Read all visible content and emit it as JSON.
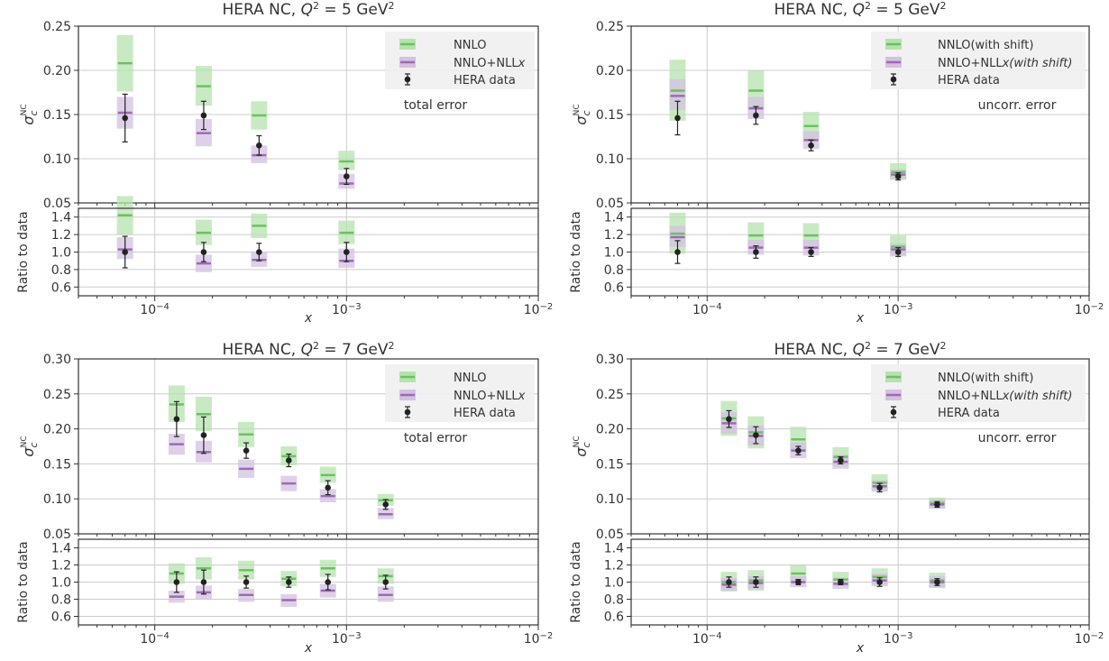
{
  "colors": {
    "nnlo": "#6cc063",
    "nnlo_band": "#b5e3ad",
    "nllx": "#9b6bb3",
    "nllx_band": "#d4c0e2",
    "data": "#222222",
    "grid": "#cccccc",
    "frame": "#333333",
    "legend_bg": "#efefef"
  },
  "chart_data": [
    {
      "type": "scatter",
      "title_parts": [
        "HERA NC, ",
        "Q",
        "2",
        " = 5 GeV",
        "2"
      ],
      "xlabel": "x",
      "ylabel_main": [
        "σ",
        "c",
        "NC"
      ],
      "ylabel_ratio": "Ratio to data",
      "xscale": "log",
      "xlim": [
        4e-05,
        0.01
      ],
      "xticks": [
        {
          "value": 0.0001,
          "label_base": "10",
          "label_exp": "−4"
        },
        {
          "value": 0.001,
          "label_base": "10",
          "label_exp": "−3"
        },
        {
          "value": 0.01,
          "label_base": "10",
          "label_exp": "−2"
        }
      ],
      "main_ylim": [
        0.05,
        0.25
      ],
      "main_yticks": [
        "0.05",
        "0.10",
        "0.15",
        "0.20",
        "0.25"
      ],
      "ratio_ylim": [
        0.5,
        1.5
      ],
      "ratio_yticks": [
        "0.6",
        "0.8",
        "1.0",
        "1.2",
        "1.4"
      ],
      "legend": [
        "NNLO",
        "NNLO+NLL",
        "x",
        "HERA data"
      ],
      "error_note": "total error",
      "points": [
        {
          "x": 7e-05,
          "data": 0.146,
          "err": 0.027,
          "nnlo": 0.208,
          "nnlo_band": [
            0.176,
            0.24
          ],
          "nllx": 0.152,
          "nllx_band": [
            0.134,
            0.17
          ]
        },
        {
          "x": 0.00018,
          "data": 0.149,
          "err": 0.016,
          "nnlo": 0.182,
          "nnlo_band": [
            0.16,
            0.205
          ],
          "nllx": 0.129,
          "nllx_band": [
            0.114,
            0.145
          ]
        },
        {
          "x": 0.00035,
          "data": 0.115,
          "err": 0.011,
          "nnlo": 0.149,
          "nnlo_band": [
            0.133,
            0.165
          ],
          "nllx": 0.104,
          "nllx_band": [
            0.095,
            0.115
          ]
        },
        {
          "x": 0.001,
          "data": 0.08,
          "err": 0.009,
          "nnlo": 0.097,
          "nnlo_band": [
            0.087,
            0.109
          ],
          "nllx": 0.072,
          "nllx_band": [
            0.066,
            0.083
          ]
        }
      ],
      "ratio_points": [
        {
          "x": 7e-05,
          "data": 1.0,
          "err": 0.18,
          "nnlo": 1.42,
          "nnlo_band": [
            1.2,
            1.64
          ],
          "nllx": 1.03,
          "nllx_band": [
            0.92,
            1.17
          ]
        },
        {
          "x": 0.00018,
          "data": 1.0,
          "err": 0.11,
          "nnlo": 1.22,
          "nnlo_band": [
            1.08,
            1.37
          ],
          "nllx": 0.87,
          "nllx_band": [
            0.77,
            0.97
          ]
        },
        {
          "x": 0.00035,
          "data": 1.0,
          "err": 0.1,
          "nnlo": 1.3,
          "nnlo_band": [
            1.16,
            1.44
          ],
          "nllx": 0.91,
          "nllx_band": [
            0.83,
            1.0
          ]
        },
        {
          "x": 0.001,
          "data": 1.0,
          "err": 0.11,
          "nnlo": 1.22,
          "nnlo_band": [
            1.09,
            1.36
          ],
          "nllx": 0.9,
          "nllx_band": [
            0.82,
            1.04
          ]
        }
      ]
    },
    {
      "type": "scatter",
      "title_parts": [
        "HERA NC, ",
        "Q",
        "2",
        " = 5 GeV",
        "2"
      ],
      "xlabel": "x",
      "ylabel_main": [
        "σ",
        "c",
        "NC"
      ],
      "ylabel_ratio": "Ratio to data",
      "xscale": "log",
      "xlim": [
        4e-05,
        0.01
      ],
      "xticks": [
        {
          "value": 0.0001,
          "label_base": "10",
          "label_exp": "−4"
        },
        {
          "value": 0.001,
          "label_base": "10",
          "label_exp": "−3"
        },
        {
          "value": 0.01,
          "label_base": "10",
          "label_exp": "−2"
        }
      ],
      "main_ylim": [
        0.05,
        0.25
      ],
      "main_yticks": [
        "0.05",
        "0.10",
        "0.15",
        "0.20",
        "0.25"
      ],
      "ratio_ylim": [
        0.5,
        1.5
      ],
      "ratio_yticks": [
        "0.6",
        "0.8",
        "1.0",
        "1.2",
        "1.4"
      ],
      "legend": [
        "NNLO(with shift)",
        "NNLO+NLL",
        "x(with shift)",
        "HERA data"
      ],
      "error_note": "uncorr. error",
      "points": [
        {
          "x": 7e-05,
          "data": 0.146,
          "err": 0.019,
          "nnlo": 0.177,
          "nnlo_band": [
            0.143,
            0.212
          ],
          "nllx": 0.171,
          "nllx_band": [
            0.155,
            0.19
          ]
        },
        {
          "x": 0.00018,
          "data": 0.149,
          "err": 0.01,
          "nnlo": 0.177,
          "nnlo_band": [
            0.155,
            0.2
          ],
          "nllx": 0.157,
          "nllx_band": [
            0.145,
            0.17
          ]
        },
        {
          "x": 0.00035,
          "data": 0.115,
          "err": 0.006,
          "nnlo": 0.137,
          "nnlo_band": [
            0.122,
            0.153
          ],
          "nllx": 0.121,
          "nllx_band": [
            0.111,
            0.131
          ]
        },
        {
          "x": 0.001,
          "data": 0.08,
          "err": 0.004,
          "nnlo": 0.085,
          "nnlo_band": [
            0.076,
            0.095
          ],
          "nllx": 0.082,
          "nllx_band": [
            0.077,
            0.088
          ]
        }
      ],
      "ratio_points": [
        {
          "x": 7e-05,
          "data": 1.0,
          "err": 0.13,
          "nnlo": 1.21,
          "nnlo_band": [
            0.98,
            1.45
          ],
          "nllx": 1.17,
          "nllx_band": [
            1.06,
            1.3
          ]
        },
        {
          "x": 0.00018,
          "data": 1.0,
          "err": 0.07,
          "nnlo": 1.19,
          "nnlo_band": [
            1.04,
            1.34
          ],
          "nllx": 1.05,
          "nllx_band": [
            0.97,
            1.14
          ]
        },
        {
          "x": 0.00035,
          "data": 1.0,
          "err": 0.05,
          "nnlo": 1.19,
          "nnlo_band": [
            1.06,
            1.33
          ],
          "nllx": 1.05,
          "nllx_band": [
            0.96,
            1.14
          ]
        },
        {
          "x": 0.001,
          "data": 1.0,
          "err": 0.05,
          "nnlo": 1.06,
          "nnlo_band": [
            0.95,
            1.19
          ],
          "nllx": 1.03,
          "nllx_band": [
            0.96,
            1.1
          ]
        }
      ]
    },
    {
      "type": "scatter",
      "title_parts": [
        "HERA NC, ",
        "Q",
        "2",
        " = 7 GeV",
        "2"
      ],
      "xlabel": "x",
      "ylabel_main": [
        "σ",
        "c",
        "NC"
      ],
      "ylabel_ratio": "Ratio to data",
      "xscale": "log",
      "xlim": [
        4e-05,
        0.01
      ],
      "xticks": [
        {
          "value": 0.0001,
          "label_base": "10",
          "label_exp": "−4"
        },
        {
          "value": 0.001,
          "label_base": "10",
          "label_exp": "−3"
        },
        {
          "value": 0.01,
          "label_base": "10",
          "label_exp": "−2"
        }
      ],
      "main_ylim": [
        0.05,
        0.3
      ],
      "main_yticks": [
        "0.05",
        "0.10",
        "0.15",
        "0.20",
        "0.25",
        "0.30"
      ],
      "ratio_ylim": [
        0.5,
        1.5
      ],
      "ratio_yticks": [
        "0.6",
        "0.8",
        "1.0",
        "1.2",
        "1.4"
      ],
      "legend": [
        "NNLO",
        "NNLO+NLL",
        "x",
        "HERA data"
      ],
      "error_note": "total error",
      "points": [
        {
          "x": 0.00013,
          "data": 0.214,
          "err": 0.025,
          "nnlo": 0.235,
          "nnlo_band": [
            0.21,
            0.262
          ],
          "nllx": 0.178,
          "nllx_band": [
            0.163,
            0.193
          ]
        },
        {
          "x": 0.00018,
          "data": 0.191,
          "err": 0.026,
          "nnlo": 0.221,
          "nnlo_band": [
            0.197,
            0.246
          ],
          "nllx": 0.167,
          "nllx_band": [
            0.152,
            0.183
          ]
        },
        {
          "x": 0.0003,
          "data": 0.169,
          "err": 0.011,
          "nnlo": 0.192,
          "nnlo_band": [
            0.174,
            0.21
          ],
          "nllx": 0.143,
          "nllx_band": [
            0.13,
            0.156
          ]
        },
        {
          "x": 0.0005,
          "data": 0.155,
          "err": 0.009,
          "nnlo": 0.161,
          "nnlo_band": [
            0.148,
            0.175
          ],
          "nllx": 0.122,
          "nllx_band": [
            0.111,
            0.133
          ]
        },
        {
          "x": 0.0008,
          "data": 0.116,
          "err": 0.01,
          "nnlo": 0.134,
          "nnlo_band": [
            0.123,
            0.146
          ],
          "nllx": 0.104,
          "nllx_band": [
            0.095,
            0.114
          ]
        },
        {
          "x": 0.0016,
          "data": 0.092,
          "err": 0.007,
          "nnlo": 0.098,
          "nnlo_band": [
            0.09,
            0.107
          ],
          "nllx": 0.078,
          "nllx_band": [
            0.071,
            0.087
          ]
        }
      ],
      "ratio_points": [
        {
          "x": 0.00013,
          "data": 1.0,
          "err": 0.12,
          "nnlo": 1.1,
          "nnlo_band": [
            0.98,
            1.22
          ],
          "nllx": 0.83,
          "nllx_band": [
            0.76,
            0.9
          ]
        },
        {
          "x": 0.00018,
          "data": 1.0,
          "err": 0.14,
          "nnlo": 1.16,
          "nnlo_band": [
            1.03,
            1.29
          ],
          "nllx": 0.88,
          "nllx_band": [
            0.8,
            0.96
          ]
        },
        {
          "x": 0.0003,
          "data": 1.0,
          "err": 0.07,
          "nnlo": 1.14,
          "nnlo_band": [
            1.03,
            1.25
          ],
          "nllx": 0.85,
          "nllx_band": [
            0.77,
            0.92
          ]
        },
        {
          "x": 0.0005,
          "data": 1.0,
          "err": 0.06,
          "nnlo": 1.04,
          "nnlo_band": [
            0.95,
            1.13
          ],
          "nllx": 0.79,
          "nllx_band": [
            0.71,
            0.86
          ]
        },
        {
          "x": 0.0008,
          "data": 1.0,
          "err": 0.09,
          "nnlo": 1.16,
          "nnlo_band": [
            1.06,
            1.26
          ],
          "nllx": 0.9,
          "nllx_band": [
            0.82,
            0.98
          ]
        },
        {
          "x": 0.0016,
          "data": 1.0,
          "err": 0.08,
          "nnlo": 1.07,
          "nnlo_band": [
            0.98,
            1.16
          ],
          "nllx": 0.85,
          "nllx_band": [
            0.77,
            0.95
          ]
        }
      ]
    },
    {
      "type": "scatter",
      "title_parts": [
        "HERA NC, ",
        "Q",
        "2",
        " = 7 GeV",
        "2"
      ],
      "xlabel": "x",
      "ylabel_main": [
        "σ",
        "c",
        "NC"
      ],
      "ylabel_ratio": "Ratio to data",
      "xscale": "log",
      "xlim": [
        4e-05,
        0.01
      ],
      "xticks": [
        {
          "value": 0.0001,
          "label_base": "10",
          "label_exp": "−4"
        },
        {
          "value": 0.001,
          "label_base": "10",
          "label_exp": "−3"
        },
        {
          "value": 0.01,
          "label_base": "10",
          "label_exp": "−2"
        }
      ],
      "main_ylim": [
        0.05,
        0.3
      ],
      "main_yticks": [
        "0.05",
        "0.10",
        "0.15",
        "0.20",
        "0.25",
        "0.30"
      ],
      "ratio_ylim": [
        0.5,
        1.5
      ],
      "ratio_yticks": [
        "0.6",
        "0.8",
        "1.0",
        "1.2",
        "1.4"
      ],
      "legend": [
        "NNLO(with shift)",
        "NNLO+NLL",
        "x(with shift)",
        "HERA data"
      ],
      "error_note": "uncorr. error",
      "points": [
        {
          "x": 0.00013,
          "data": 0.214,
          "err": 0.012,
          "nnlo": 0.215,
          "nnlo_band": [
            0.19,
            0.24
          ],
          "nllx": 0.208,
          "nllx_band": [
            0.193,
            0.224
          ]
        },
        {
          "x": 0.00018,
          "data": 0.191,
          "err": 0.012,
          "nnlo": 0.195,
          "nnlo_band": [
            0.172,
            0.218
          ],
          "nllx": 0.19,
          "nllx_band": [
            0.176,
            0.205
          ]
        },
        {
          "x": 0.0003,
          "data": 0.169,
          "err": 0.006,
          "nnlo": 0.185,
          "nnlo_band": [
            0.168,
            0.203
          ],
          "nllx": 0.169,
          "nllx_band": [
            0.158,
            0.181
          ]
        },
        {
          "x": 0.0005,
          "data": 0.155,
          "err": 0.005,
          "nnlo": 0.16,
          "nnlo_band": [
            0.147,
            0.174
          ],
          "nllx": 0.153,
          "nllx_band": [
            0.143,
            0.163
          ]
        },
        {
          "x": 0.0008,
          "data": 0.116,
          "err": 0.006,
          "nnlo": 0.123,
          "nnlo_band": [
            0.112,
            0.135
          ],
          "nllx": 0.118,
          "nllx_band": [
            0.11,
            0.127
          ]
        },
        {
          "x": 0.0016,
          "data": 0.092,
          "err": 0.004,
          "nnlo": 0.094,
          "nnlo_band": [
            0.086,
            0.102
          ],
          "nllx": 0.092,
          "nllx_band": [
            0.086,
            0.099
          ]
        }
      ],
      "ratio_points": [
        {
          "x": 0.00013,
          "data": 1.0,
          "err": 0.06,
          "nnlo": 1.0,
          "nnlo_band": [
            0.89,
            1.12
          ],
          "nllx": 0.97,
          "nllx_band": [
            0.9,
            1.05
          ]
        },
        {
          "x": 0.00018,
          "data": 1.0,
          "err": 0.06,
          "nnlo": 1.02,
          "nnlo_band": [
            0.9,
            1.14
          ],
          "nllx": 0.99,
          "nllx_band": [
            0.92,
            1.07
          ]
        },
        {
          "x": 0.0003,
          "data": 1.0,
          "err": 0.03,
          "nnlo": 1.1,
          "nnlo_band": [
            0.99,
            1.2
          ],
          "nllx": 1.0,
          "nllx_band": [
            0.94,
            1.07
          ]
        },
        {
          "x": 0.0005,
          "data": 1.0,
          "err": 0.03,
          "nnlo": 1.03,
          "nnlo_band": [
            0.95,
            1.12
          ],
          "nllx": 0.98,
          "nllx_band": [
            0.92,
            1.05
          ]
        },
        {
          "x": 0.0008,
          "data": 1.0,
          "err": 0.05,
          "nnlo": 1.06,
          "nnlo_band": [
            0.97,
            1.16
          ],
          "nllx": 1.02,
          "nllx_band": [
            0.95,
            1.1
          ]
        },
        {
          "x": 0.0016,
          "data": 1.0,
          "err": 0.04,
          "nnlo": 1.02,
          "nnlo_band": [
            0.94,
            1.11
          ],
          "nllx": 1.0,
          "nllx_band": [
            0.93,
            1.07
          ]
        }
      ]
    }
  ]
}
